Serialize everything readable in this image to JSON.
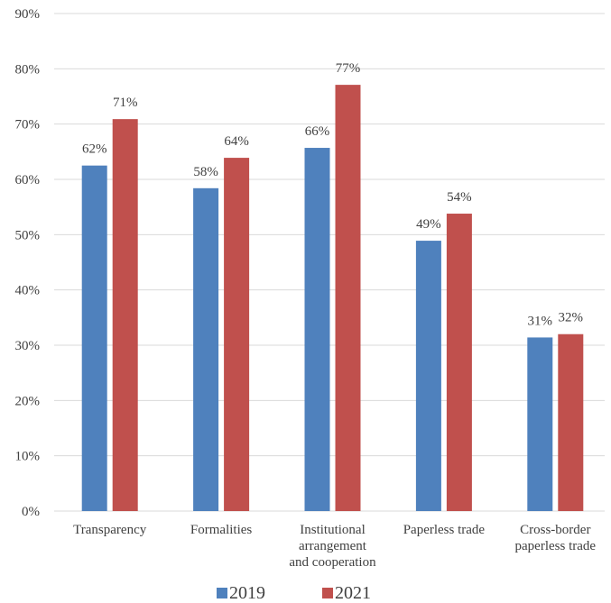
{
  "chart_data": {
    "type": "bar",
    "categories": [
      [
        "Transparency"
      ],
      [
        "Formalities"
      ],
      [
        "Institutional",
        "arrangement",
        "and cooperation"
      ],
      [
        "Paperless trade"
      ],
      [
        "Cross-border",
        "paperless trade"
      ]
    ],
    "series": [
      {
        "name": "2019",
        "color": "#4f81bd",
        "values": [
          62.5,
          58.4,
          65.7,
          48.9,
          31.4
        ],
        "labels": [
          "62%",
          "58%",
          "66%",
          "49%",
          "31%"
        ]
      },
      {
        "name": "2021",
        "color": "#c0504d",
        "values": [
          70.9,
          63.9,
          77.1,
          53.8,
          32.0
        ],
        "labels": [
          "71%",
          "64%",
          "77%",
          "54%",
          "32%"
        ]
      }
    ],
    "ylim": [
      0,
      90
    ],
    "yticks": [
      0,
      10,
      20,
      30,
      40,
      50,
      60,
      70,
      80,
      90
    ],
    "ytick_labels": [
      "0%",
      "10%",
      "20%",
      "30%",
      "40%",
      "50%",
      "60%",
      "70%",
      "80%",
      "90%"
    ],
    "grid": true,
    "legend": "bottom",
    "title": "",
    "xlabel": "",
    "ylabel": ""
  }
}
